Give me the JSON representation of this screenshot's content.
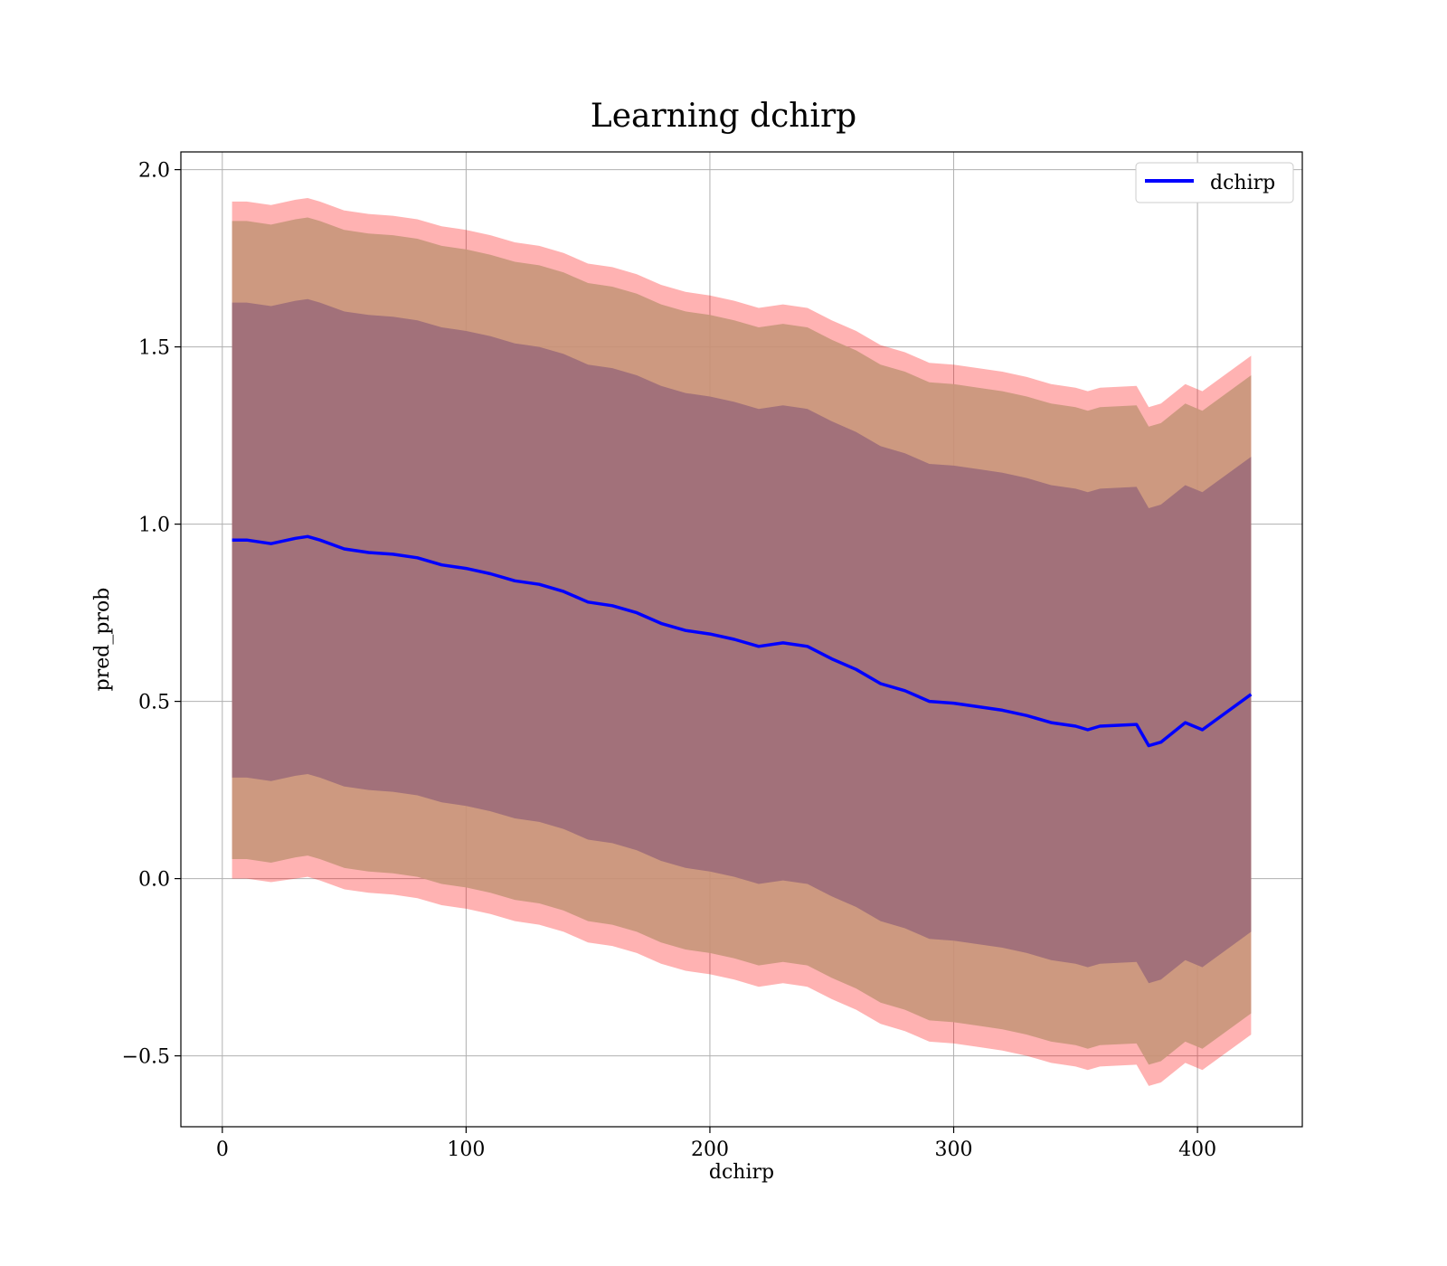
{
  "chart_data": {
    "type": "line",
    "title": "Learning dchirp",
    "xlabel": "dchirp",
    "ylabel": "pred_prob",
    "xlim": [
      -17,
      443
    ],
    "ylim": [
      -0.7,
      2.05
    ],
    "xticks": [
      0,
      100,
      200,
      300,
      400
    ],
    "xtick_labels": [
      "0",
      "100",
      "200",
      "300",
      "400"
    ],
    "yticks": [
      -0.5,
      0.0,
      0.5,
      1.0,
      1.5,
      2.0
    ],
    "ytick_labels": [
      "−0.5",
      "0.0",
      "0.5",
      "1.0",
      "1.5",
      "2.0"
    ],
    "grid": true,
    "legend": {
      "position": "top-right",
      "entries": [
        "dchirp"
      ]
    },
    "colors": {
      "line": "#0000ff",
      "outer_band": "#ff0000",
      "middle_band": "#c8967a",
      "inner_band": "#a2717a"
    },
    "series": [
      {
        "name": "dchirp",
        "x": [
          4,
          10,
          20,
          30,
          35,
          40,
          50,
          60,
          70,
          80,
          90,
          100,
          110,
          120,
          130,
          140,
          150,
          160,
          170,
          180,
          190,
          200,
          210,
          220,
          230,
          240,
          250,
          260,
          270,
          280,
          290,
          300,
          310,
          320,
          330,
          340,
          350,
          355,
          360,
          375,
          380,
          385,
          395,
          402,
          422
        ],
        "y": [
          0.955,
          0.955,
          0.945,
          0.96,
          0.965,
          0.955,
          0.93,
          0.92,
          0.915,
          0.905,
          0.885,
          0.875,
          0.86,
          0.84,
          0.83,
          0.81,
          0.78,
          0.77,
          0.75,
          0.72,
          0.7,
          0.69,
          0.675,
          0.655,
          0.665,
          0.655,
          0.62,
          0.59,
          0.55,
          0.53,
          0.5,
          0.495,
          0.485,
          0.475,
          0.46,
          0.44,
          0.43,
          0.42,
          0.43,
          0.435,
          0.375,
          0.385,
          0.44,
          0.42,
          0.52
        ]
      }
    ],
    "bands": [
      {
        "level": "outer",
        "x": [
          4,
          10,
          20,
          30,
          35,
          40,
          50,
          60,
          70,
          80,
          90,
          100,
          110,
          120,
          130,
          140,
          150,
          160,
          170,
          180,
          190,
          200,
          210,
          220,
          230,
          240,
          250,
          260,
          270,
          280,
          290,
          300,
          310,
          320,
          330,
          340,
          350,
          355,
          360,
          375,
          380,
          385,
          395,
          402,
          422
        ],
        "lower": [
          0.0,
          0.0,
          -0.01,
          0.0,
          0.005,
          -0.005,
          -0.03,
          -0.04,
          -0.045,
          -0.055,
          -0.075,
          -0.085,
          -0.1,
          -0.12,
          -0.13,
          -0.15,
          -0.18,
          -0.19,
          -0.21,
          -0.24,
          -0.26,
          -0.27,
          -0.285,
          -0.305,
          -0.295,
          -0.305,
          -0.34,
          -0.37,
          -0.41,
          -0.43,
          -0.46,
          -0.465,
          -0.475,
          -0.485,
          -0.5,
          -0.52,
          -0.53,
          -0.54,
          -0.53,
          -0.525,
          -0.585,
          -0.575,
          -0.52,
          -0.54,
          -0.44
        ],
        "upper": [
          1.91,
          1.91,
          1.9,
          1.915,
          1.92,
          1.91,
          1.885,
          1.875,
          1.87,
          1.86,
          1.84,
          1.83,
          1.815,
          1.795,
          1.785,
          1.765,
          1.735,
          1.725,
          1.705,
          1.675,
          1.655,
          1.645,
          1.63,
          1.61,
          1.62,
          1.61,
          1.575,
          1.545,
          1.505,
          1.485,
          1.455,
          1.45,
          1.44,
          1.43,
          1.415,
          1.395,
          1.385,
          1.375,
          1.385,
          1.39,
          1.33,
          1.34,
          1.395,
          1.375,
          1.475
        ]
      },
      {
        "level": "middle",
        "x": [
          4,
          10,
          20,
          30,
          35,
          40,
          50,
          60,
          70,
          80,
          90,
          100,
          110,
          120,
          130,
          140,
          150,
          160,
          170,
          180,
          190,
          200,
          210,
          220,
          230,
          240,
          250,
          260,
          270,
          280,
          290,
          300,
          310,
          320,
          330,
          340,
          350,
          355,
          360,
          375,
          380,
          385,
          395,
          402,
          422
        ],
        "lower": [
          0.055,
          0.055,
          0.045,
          0.06,
          0.065,
          0.055,
          0.03,
          0.02,
          0.015,
          0.005,
          -0.015,
          -0.025,
          -0.04,
          -0.06,
          -0.07,
          -0.09,
          -0.12,
          -0.13,
          -0.15,
          -0.18,
          -0.2,
          -0.21,
          -0.225,
          -0.245,
          -0.235,
          -0.245,
          -0.28,
          -0.31,
          -0.35,
          -0.37,
          -0.4,
          -0.405,
          -0.415,
          -0.425,
          -0.44,
          -0.46,
          -0.47,
          -0.48,
          -0.47,
          -0.465,
          -0.525,
          -0.515,
          -0.46,
          -0.48,
          -0.38
        ],
        "upper": [
          1.855,
          1.855,
          1.845,
          1.86,
          1.865,
          1.855,
          1.83,
          1.82,
          1.815,
          1.805,
          1.785,
          1.775,
          1.76,
          1.74,
          1.73,
          1.71,
          1.68,
          1.67,
          1.65,
          1.62,
          1.6,
          1.59,
          1.575,
          1.555,
          1.565,
          1.555,
          1.52,
          1.49,
          1.45,
          1.43,
          1.4,
          1.395,
          1.385,
          1.375,
          1.36,
          1.34,
          1.33,
          1.32,
          1.33,
          1.335,
          1.275,
          1.285,
          1.34,
          1.32,
          1.42
        ]
      },
      {
        "level": "inner",
        "x": [
          4,
          10,
          20,
          30,
          35,
          40,
          50,
          60,
          70,
          80,
          90,
          100,
          110,
          120,
          130,
          140,
          150,
          160,
          170,
          180,
          190,
          200,
          210,
          220,
          230,
          240,
          250,
          260,
          270,
          280,
          290,
          300,
          310,
          320,
          330,
          340,
          350,
          355,
          360,
          375,
          380,
          385,
          395,
          402,
          422
        ],
        "lower": [
          0.285,
          0.285,
          0.275,
          0.29,
          0.295,
          0.285,
          0.26,
          0.25,
          0.245,
          0.235,
          0.215,
          0.205,
          0.19,
          0.17,
          0.16,
          0.14,
          0.11,
          0.1,
          0.08,
          0.05,
          0.03,
          0.02,
          0.005,
          -0.015,
          -0.005,
          -0.015,
          -0.05,
          -0.08,
          -0.12,
          -0.14,
          -0.17,
          -0.175,
          -0.185,
          -0.195,
          -0.21,
          -0.23,
          -0.24,
          -0.25,
          -0.24,
          -0.235,
          -0.295,
          -0.285,
          -0.23,
          -0.25,
          -0.15
        ],
        "upper": [
          1.625,
          1.625,
          1.615,
          1.63,
          1.635,
          1.625,
          1.6,
          1.59,
          1.585,
          1.575,
          1.555,
          1.545,
          1.53,
          1.51,
          1.5,
          1.48,
          1.45,
          1.44,
          1.42,
          1.39,
          1.37,
          1.36,
          1.345,
          1.325,
          1.335,
          1.325,
          1.29,
          1.26,
          1.22,
          1.2,
          1.17,
          1.165,
          1.155,
          1.145,
          1.13,
          1.11,
          1.1,
          1.09,
          1.1,
          1.105,
          1.045,
          1.055,
          1.11,
          1.09,
          1.19
        ]
      }
    ]
  }
}
